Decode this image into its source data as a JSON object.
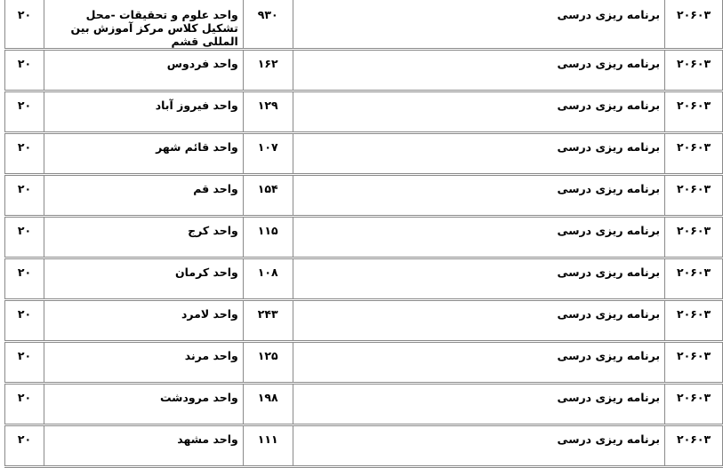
{
  "rows": [
    {
      "code": "۲۰۶۰۳",
      "course": "برنامه ریزی درسی",
      "unit_code": "۹۳۰",
      "unit": "واحد علوم و تحقیقات -محل تشکیل کلاس مرکز آموزش بین المللی قشم",
      "capacity": "۲۰"
    },
    {
      "code": "۲۰۶۰۳",
      "course": "برنامه ریزی درسی",
      "unit_code": "۱۶۲",
      "unit": "واحد فردوس",
      "capacity": "۲۰"
    },
    {
      "code": "۲۰۶۰۳",
      "course": "برنامه ریزی درسی",
      "unit_code": "۱۲۹",
      "unit": "واحد فیروز آباد",
      "capacity": "۲۰"
    },
    {
      "code": "۲۰۶۰۳",
      "course": "برنامه ریزی درسی",
      "unit_code": "۱۰۷",
      "unit": "واحد قائم شهر",
      "capacity": "۲۰"
    },
    {
      "code": "۲۰۶۰۳",
      "course": "برنامه ریزی درسی",
      "unit_code": "۱۵۴",
      "unit": "واحد قم",
      "capacity": "۲۰"
    },
    {
      "code": "۲۰۶۰۳",
      "course": "برنامه ریزی درسی",
      "unit_code": "۱۱۵",
      "unit": "واحد کرج",
      "capacity": "۲۰"
    },
    {
      "code": "۲۰۶۰۳",
      "course": "برنامه ریزی درسی",
      "unit_code": "۱۰۸",
      "unit": "واحد کرمان",
      "capacity": "۲۰"
    },
    {
      "code": "۲۰۶۰۳",
      "course": "برنامه ریزی درسی",
      "unit_code": "۲۴۳",
      "unit": "واحد لامرد",
      "capacity": "۲۰"
    },
    {
      "code": "۲۰۶۰۳",
      "course": "برنامه ریزی درسی",
      "unit_code": "۱۲۵",
      "unit": "واحد مرند",
      "capacity": "۲۰"
    },
    {
      "code": "۲۰۶۰۳",
      "course": "برنامه ریزی درسی",
      "unit_code": "۱۹۸",
      "unit": "واحد مرودشت",
      "capacity": "۲۰"
    },
    {
      "code": "۲۰۶۰۳",
      "course": "برنامه ریزی درسی",
      "unit_code": "۱۱۱",
      "unit": "واحد مشهد",
      "capacity": "۲۰"
    }
  ]
}
